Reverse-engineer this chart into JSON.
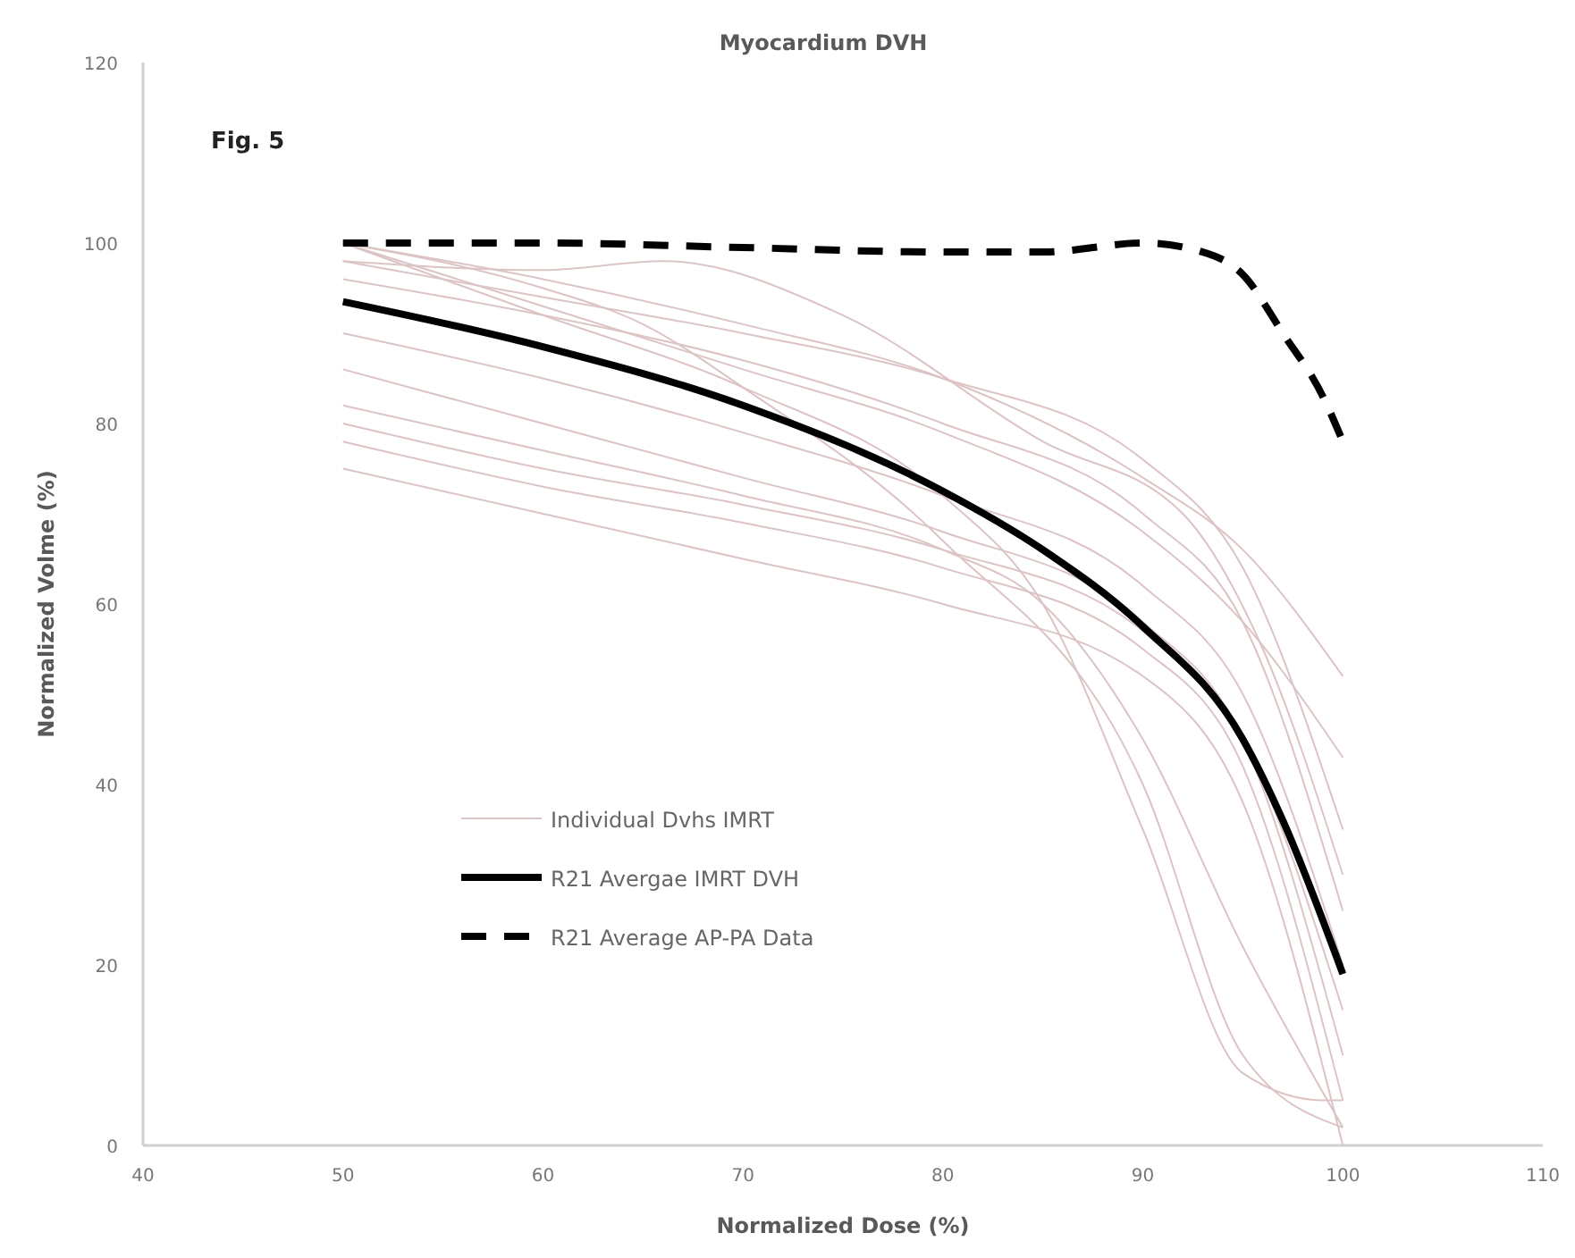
{
  "chart_data": {
    "type": "line",
    "title": "Myocardium DVH",
    "xlabel": "Normalized Dose (%)",
    "ylabel": "Normalized Volme (%)",
    "annotations": [
      "Fig. 5"
    ],
    "xlim": [
      40,
      110
    ],
    "xticks": [
      40,
      50,
      60,
      70,
      80,
      90,
      100,
      110
    ],
    "ylim": [
      0,
      120
    ],
    "yticks": [
      0,
      20,
      40,
      60,
      80,
      100,
      120
    ],
    "grid": false,
    "legend": "bottom left",
    "series": [
      {
        "name": "Individual Dvhs IMRT",
        "color": "#dcc4c4",
        "x": [
          50,
          60,
          70,
          80,
          90,
          95,
          100
        ],
        "values": [
          100,
          96,
          91,
          85,
          74,
          66,
          52
        ]
      },
      {
        "color": "#dcc4c4",
        "x": [
          50,
          60,
          70,
          80,
          90,
          95,
          100
        ],
        "values": [
          100,
          93,
          86,
          79,
          68,
          58,
          43
        ]
      },
      {
        "color": "#dcc4c4",
        "x": [
          50,
          60,
          65,
          70,
          80,
          90,
          95,
          100
        ],
        "values": [
          100,
          95,
          91,
          84,
          67,
          40,
          10,
          2
        ]
      },
      {
        "color": "#dcc4c4",
        "x": [
          50,
          60,
          66,
          75,
          85,
          92,
          96,
          100
        ],
        "values": [
          98,
          97,
          98,
          92,
          78,
          70,
          55,
          30
        ]
      },
      {
        "color": "#dcc4c4",
        "x": [
          50,
          60,
          70,
          80,
          90,
          95,
          100
        ],
        "values": [
          96,
          92,
          87,
          80,
          70,
          58,
          26
        ]
      },
      {
        "color": "#dcc4c4",
        "x": [
          50,
          60,
          70,
          80,
          90,
          95,
          100
        ],
        "values": [
          90,
          85,
          79,
          72,
          62,
          50,
          20
        ]
      },
      {
        "color": "#dcc4c4",
        "x": [
          50,
          60,
          70,
          80,
          90,
          95,
          100
        ],
        "values": [
          86,
          80,
          74,
          68,
          58,
          45,
          10
        ]
      },
      {
        "color": "#dcc4c4",
        "x": [
          50,
          60,
          70,
          80,
          85,
          90,
          95,
          100
        ],
        "values": [
          82,
          77,
          72,
          66,
          60,
          45,
          22,
          2
        ]
      },
      {
        "color": "#dcc4c4",
        "x": [
          50,
          60,
          70,
          80,
          90,
          95,
          100
        ],
        "values": [
          80,
          75,
          71,
          66,
          57,
          45,
          15
        ]
      },
      {
        "color": "#dcc4c4",
        "x": [
          50,
          60,
          70,
          80,
          90,
          95,
          100
        ],
        "values": [
          78,
          73,
          69,
          64,
          55,
          42,
          5
        ]
      },
      {
        "color": "#dcc4c4",
        "x": [
          50,
          60,
          70,
          80,
          90,
          95,
          100
        ],
        "values": [
          75,
          70,
          65,
          60,
          52,
          38,
          0
        ]
      },
      {
        "color": "#dcc4c4",
        "x": [
          50,
          60,
          70,
          80,
          85,
          90,
          95,
          99,
          100
        ],
        "values": [
          100,
          92,
          84,
          72,
          60,
          35,
          8,
          5,
          5
        ]
      },
      {
        "color": "#dcc4c4",
        "x": [
          50,
          60,
          70,
          80,
          90,
          95,
          100
        ],
        "values": [
          98,
          94,
          90,
          85,
          76,
          64,
          35
        ]
      },
      {
        "name": "R21 Avergae IMRT DVH",
        "color": "#000000",
        "x": [
          50,
          60,
          70,
          80,
          85,
          90,
          95,
          97,
          100
        ],
        "values": [
          93.5,
          88.5,
          82,
          72.5,
          66,
          57.5,
          45,
          36,
          19
        ]
      },
      {
        "name": "R21 Average AP-PA Data",
        "color": "#000000",
        "line_style": "dashed",
        "x": [
          50,
          60,
          70,
          80,
          85,
          90,
          93,
          95,
          97,
          99,
          100
        ],
        "values": [
          100,
          100,
          99.5,
          99,
          99,
          100,
          99,
          96.5,
          90,
          83,
          78
        ]
      }
    ]
  }
}
